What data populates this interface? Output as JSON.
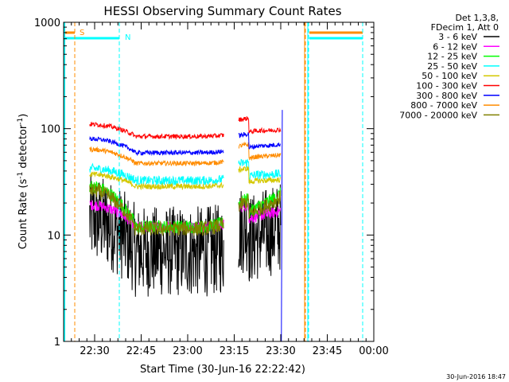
{
  "chart_data": {
    "type": "line",
    "title": "HESSI Observing Summary Count Rates",
    "xlabel": "Start Time (30-Jun-16 22:22:42)",
    "ylabel_main": "Count Rate (s",
    "ylabel_sup1": "-1",
    "ylabel_mid": " detector",
    "ylabel_sup2": "-1",
    "ylabel_end": ")",
    "yscale": "log",
    "ylim": [
      1,
      1000
    ],
    "xlim_min": [
      -2.7,
      97.3
    ],
    "y_ticks": [
      "1",
      "10",
      "100",
      "1000"
    ],
    "x_ticks": [
      {
        "label": "22:30",
        "min": 7.3
      },
      {
        "label": "22:45",
        "min": 22.3
      },
      {
        "label": "23:00",
        "min": 37.3
      },
      {
        "label": "23:15",
        "min": 52.3
      },
      {
        "label": "23:30",
        "min": 67.3
      },
      {
        "label": "23:45",
        "min": 82.3
      },
      {
        "label": "00:00",
        "min": 97.3
      }
    ],
    "legend_header": [
      "Det 1,3,8,",
      "FDecim 1, Att 0"
    ],
    "series": [
      {
        "name": "3 - 6 keV",
        "color": "#000000"
      },
      {
        "name": "6 - 12 keV",
        "color": "#ff00ff"
      },
      {
        "name": "12 - 25 keV",
        "color": "#00ff00"
      },
      {
        "name": "25 - 50 keV",
        "color": "#00ffff"
      },
      {
        "name": "50 - 100 keV",
        "color": "#d4c800"
      },
      {
        "name": "100 - 300 keV",
        "color": "#ff0000"
      },
      {
        "name": "300 - 800 keV",
        "color": "#0000ff"
      },
      {
        "name": "800 - 7000 keV",
        "color": "#ff8c00"
      },
      {
        "name": "7000 - 20000 keV",
        "color": "#808000"
      }
    ],
    "markers": [
      {
        "label": "S",
        "color": "#ff8c00"
      },
      {
        "label": "N",
        "color": "#00ffff"
      }
    ],
    "footer_date": "30-Jun-2016 18:47"
  }
}
